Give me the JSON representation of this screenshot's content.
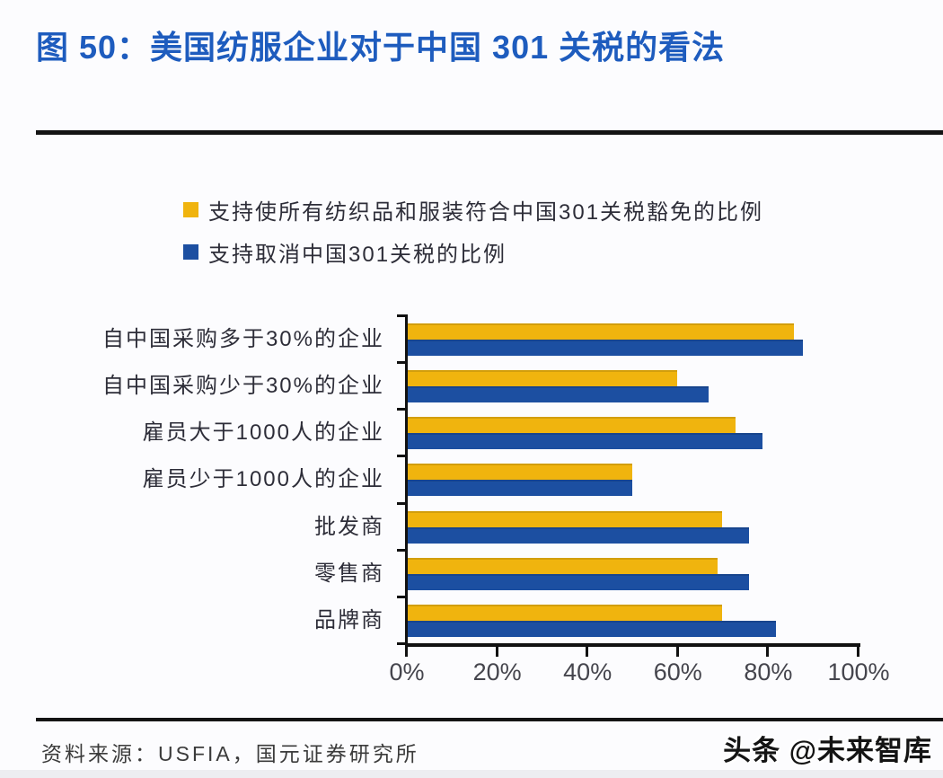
{
  "header": {
    "title": "图 50：美国纺服企业对于中国 301 关税的看法",
    "title_color": "#1e5cbe"
  },
  "legend": [
    {
      "label": "支持使所有纺织品和服装符合中国301关税豁免的比例",
      "color": "#f0b40e"
    },
    {
      "label": "支持取消中国301关税的比例",
      "color": "#1c4fa1"
    }
  ],
  "chart_data": {
    "type": "bar",
    "orientation": "horizontal",
    "title": "美国纺服企业对于中国301关税的看法",
    "categories": [
      "自中国采购多于30%的企业",
      "自中国采购少于30%的企业",
      "雇员大于1000人的企业",
      "雇员少于1000人的企业",
      "批发商",
      "零售商",
      "品牌商"
    ],
    "series": [
      {
        "name": "支持使所有纺织品和服装符合中国301关税豁免的比例",
        "color": "#f0b40e",
        "values": [
          86,
          60,
          73,
          50,
          70,
          69,
          70
        ]
      },
      {
        "name": "支持取消中国301关税的比例",
        "color": "#1c4fa1",
        "values": [
          88,
          67,
          79,
          50,
          76,
          76,
          82
        ]
      }
    ],
    "x_ticks": [
      "0%",
      "20%",
      "40%",
      "60%",
      "80%",
      "100%"
    ],
    "xlim": [
      0,
      100
    ],
    "grid": false,
    "legend_position": "top-left"
  },
  "footer": {
    "source": "资料来源：USFIA，国元证券研究所",
    "watermark": "头条 @未来智库"
  }
}
